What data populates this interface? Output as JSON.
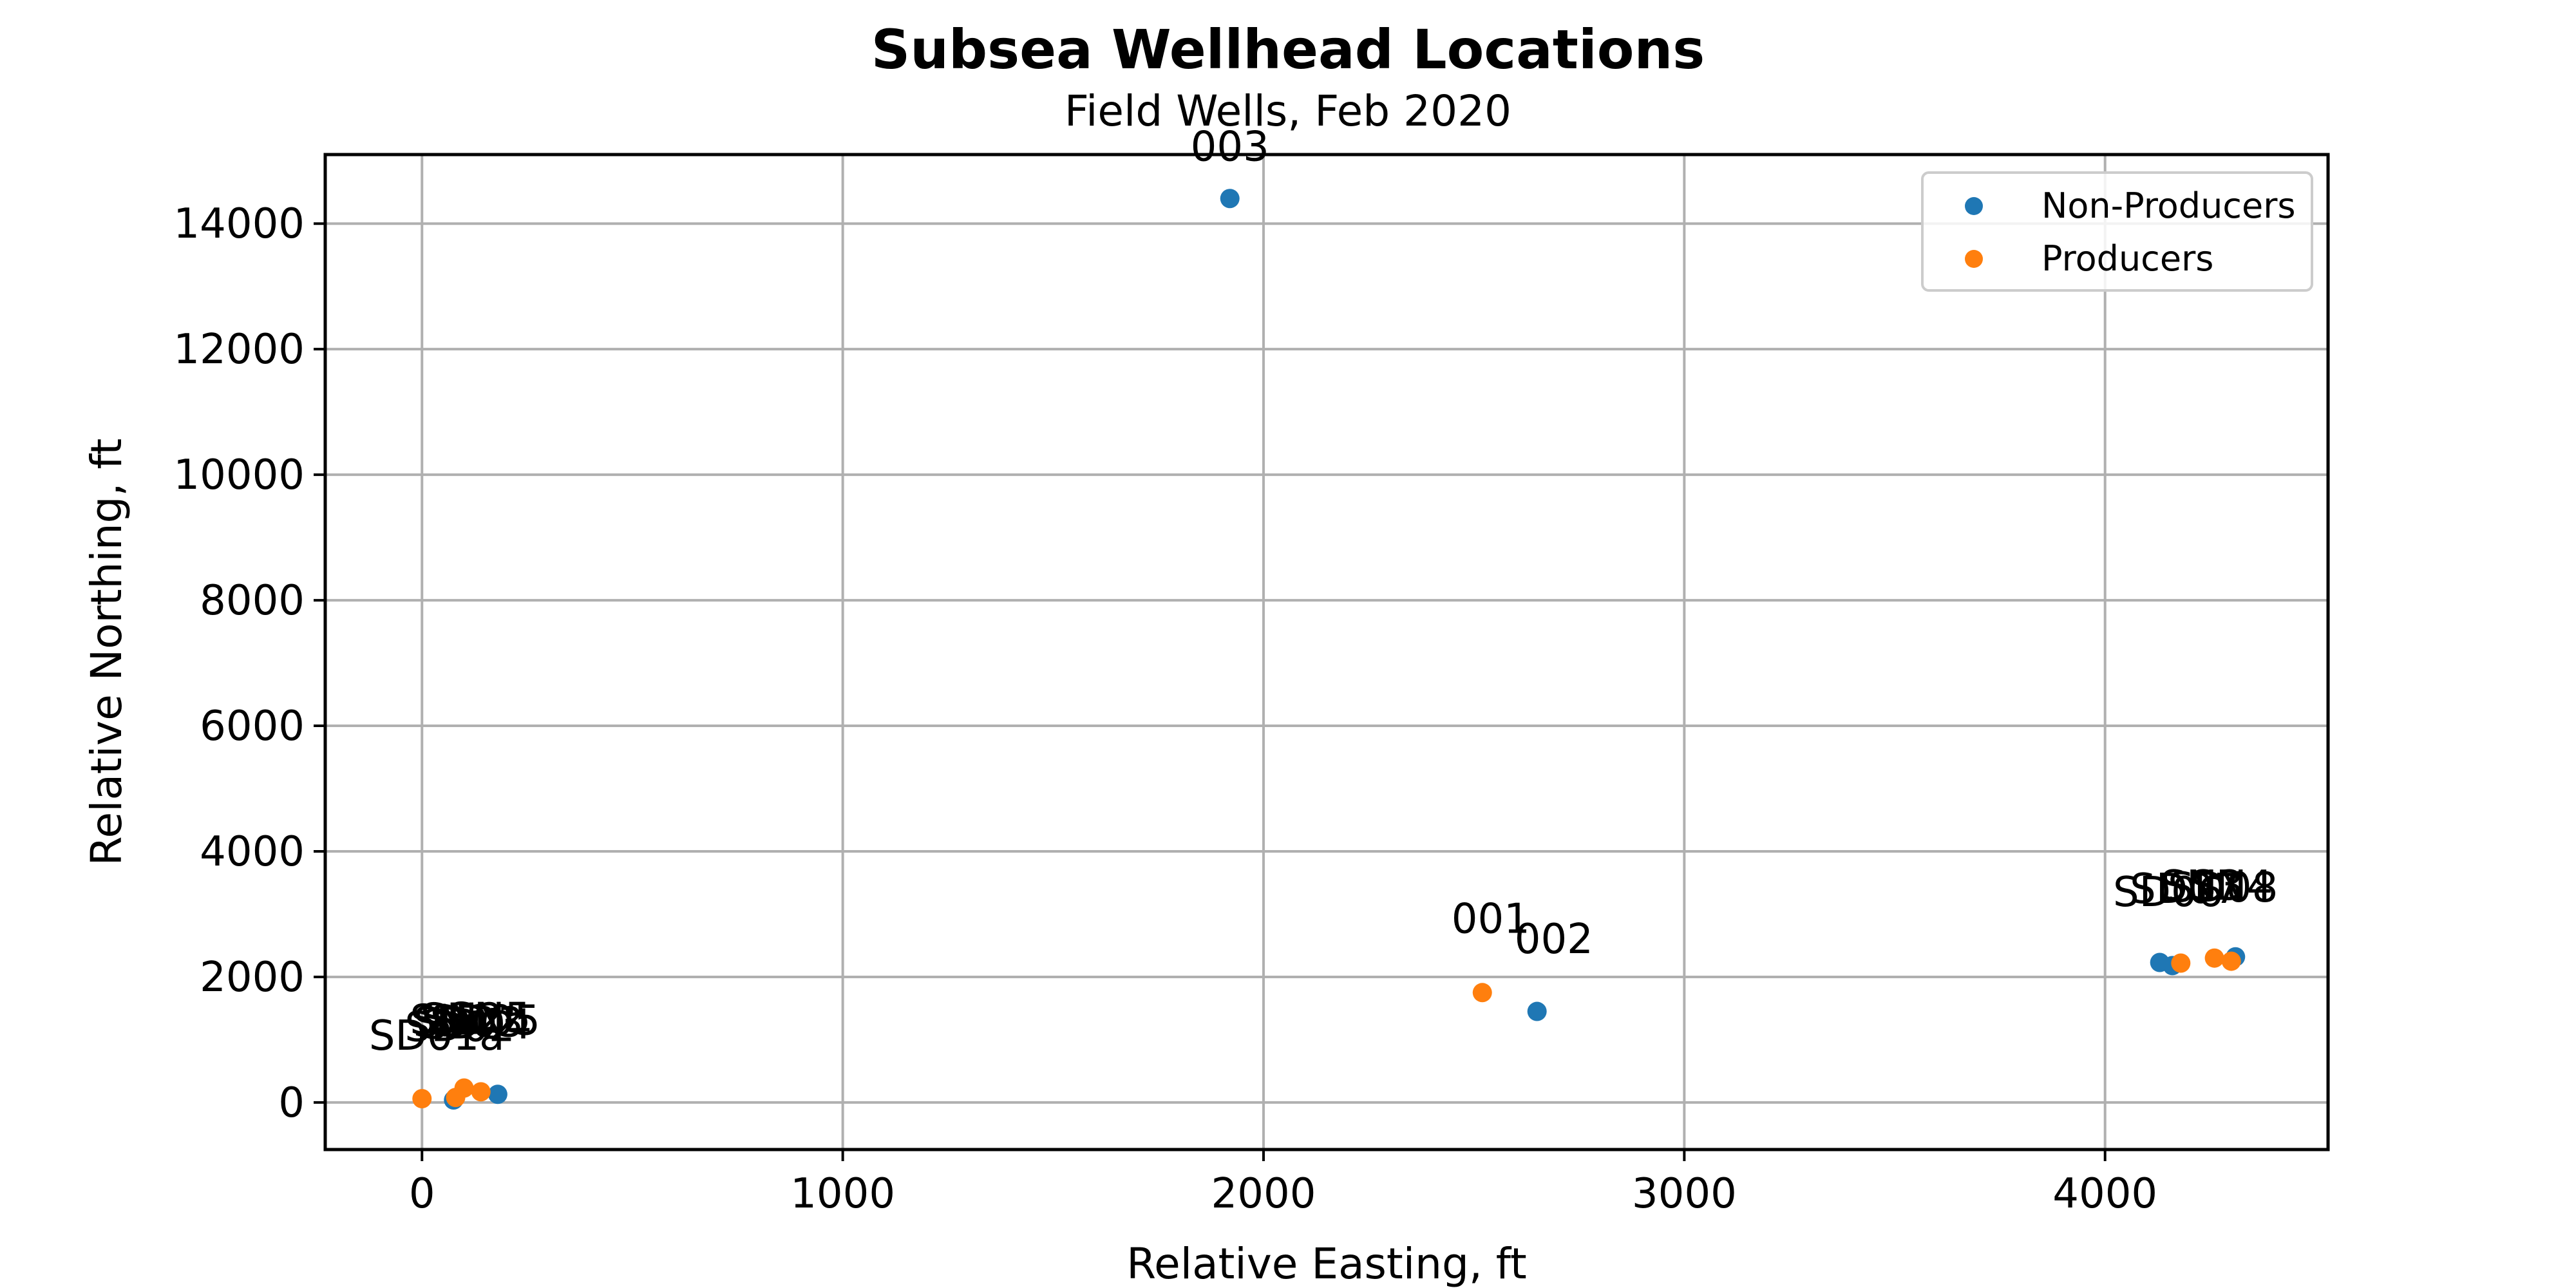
{
  "chart_data": {
    "type": "scatter",
    "title": "Subsea Wellhead Locations",
    "subtitle": "Field Wells, Feb 2020",
    "xlabel": "Relative Easting, ft",
    "ylabel": "Relative Northing, ft",
    "xlim": [
      -230,
      4530
    ],
    "ylim": [
      -750,
      15100
    ],
    "xticks": [
      0,
      1000,
      2000,
      3000,
      4000
    ],
    "yticks": [
      0,
      2000,
      4000,
      6000,
      8000,
      10000,
      12000,
      14000
    ],
    "grid": true,
    "legend_position": "top-right",
    "series": [
      {
        "name": "Non-Producers",
        "color": "#1f77b4",
        "points": [
          {
            "x": 1920,
            "y": 14400
          },
          {
            "x": 2650,
            "y": 1450
          },
          {
            "x": 180,
            "y": 130
          },
          {
            "x": 75,
            "y": 40
          },
          {
            "x": 4130,
            "y": 2230
          },
          {
            "x": 4160,
            "y": 2180
          },
          {
            "x": 4310,
            "y": 2320
          }
        ]
      },
      {
        "name": "Producers",
        "color": "#ff7f0e",
        "points": [
          {
            "x": 2520,
            "y": 1750
          },
          {
            "x": 0,
            "y": 60
          },
          {
            "x": 100,
            "y": 230
          },
          {
            "x": 140,
            "y": 170
          },
          {
            "x": 80,
            "y": 80
          },
          {
            "x": 4180,
            "y": 2220
          },
          {
            "x": 4260,
            "y": 2300
          },
          {
            "x": 4300,
            "y": 2250
          }
        ]
      }
    ],
    "annotations": [
      {
        "text": "003",
        "x": 1920,
        "y": 15000
      },
      {
        "text": "001",
        "x": 2540,
        "y": 2700
      },
      {
        "text": "002",
        "x": 2690,
        "y": 2380
      },
      {
        "text": "SD01a",
        "x": 35,
        "y": 840
      },
      {
        "text": "SD02",
        "x": 90,
        "y": 980
      },
      {
        "text": "SD03",
        "x": 110,
        "y": 1050
      },
      {
        "text": "SD04",
        "x": 130,
        "y": 1020
      },
      {
        "text": "SD05",
        "x": 150,
        "y": 1080
      },
      {
        "text": "SN1",
        "x": 70,
        "y": 1090
      },
      {
        "text": "SN2",
        "x": 95,
        "y": 1110
      },
      {
        "text": "SN5",
        "x": 160,
        "y": 1120
      },
      {
        "text": "SD06",
        "x": 4150,
        "y": 3130
      },
      {
        "text": "SD07",
        "x": 4190,
        "y": 3180
      },
      {
        "text": "SD08",
        "x": 4280,
        "y": 3200
      },
      {
        "text": "SN3",
        "x": 4230,
        "y": 3230
      },
      {
        "text": "SN4",
        "x": 4300,
        "y": 3230
      }
    ]
  }
}
